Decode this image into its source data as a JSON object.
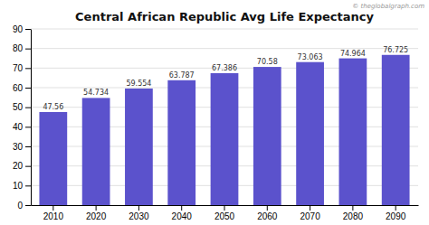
{
  "chart_data": {
    "type": "bar",
    "title": "Central African Republic Avg Life Expectancy",
    "categories": [
      "2010",
      "2020",
      "2030",
      "2040",
      "2050",
      "2060",
      "2070",
      "2080",
      "2090"
    ],
    "values": [
      47.56,
      54.734,
      59.554,
      63.787,
      67.386,
      70.58,
      73.063,
      74.964,
      76.725
    ],
    "color": "#5b52cc",
    "ylim": [
      0,
      90
    ],
    "yticks": [
      0,
      10,
      20,
      30,
      40,
      50,
      60,
      70,
      80,
      90
    ],
    "grid": true,
    "data_labels": true,
    "annotations": [
      "© theglobalgraph.com"
    ]
  }
}
